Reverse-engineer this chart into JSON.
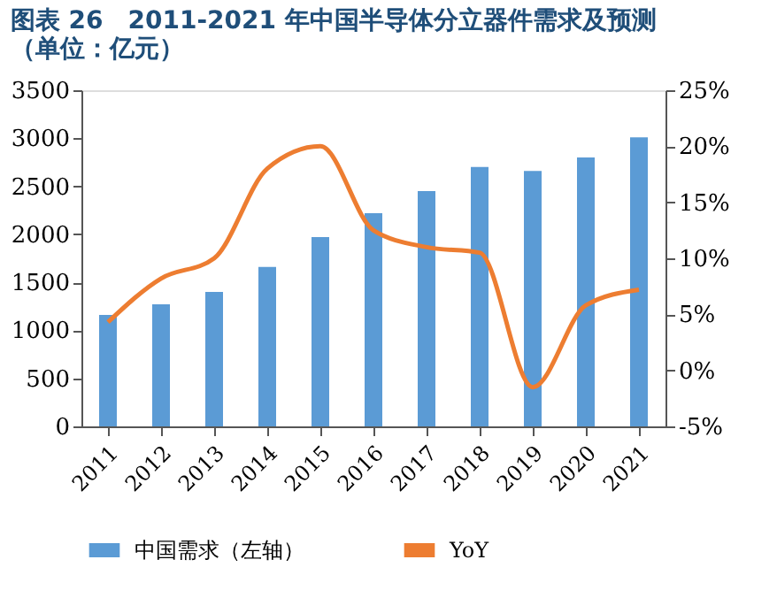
{
  "chart_data": {
    "type": "bar",
    "title": "图表 26　2011-2021 年中国半导体分立器件需求及预测",
    "subtitle": "（单位：亿元）",
    "categories": [
      "2011",
      "2012",
      "2013",
      "2014",
      "2015",
      "2016",
      "2017",
      "2018",
      "2019",
      "2020",
      "2021"
    ],
    "series": [
      {
        "name": "中国需求（左轴）",
        "color": "#5b9bd5",
        "values": [
          1160,
          1270,
          1400,
          1660,
          1970,
          2220,
          2450,
          2700,
          2660,
          2800,
          3010
        ]
      },
      {
        "name": "YoY",
        "color": "#ed7d31",
        "type": "line",
        "axis": "y2",
        "values": [
          4.3,
          8.2,
          10,
          18,
          20,
          12.5,
          11,
          10.5,
          -1.5,
          5.8,
          7.2
        ]
      }
    ],
    "ylim": [
      0,
      3500
    ],
    "yticks": [
      0,
      500,
      1000,
      1500,
      2000,
      2500,
      3000,
      3500
    ],
    "y2lim": [
      -5,
      25
    ],
    "y2ticks": [
      {
        "value": -5,
        "label": "-5%"
      },
      {
        "value": 0,
        "label": "0%"
      },
      {
        "value": 5,
        "label": "5%"
      },
      {
        "value": 10,
        "label": "10%"
      },
      {
        "value": 15,
        "label": "15%"
      },
      {
        "value": 20,
        "label": "20%"
      },
      {
        "value": 25,
        "label": "25%"
      }
    ],
    "grid": false,
    "legend": "bottom",
    "marker": "none",
    "line_style": "solid"
  }
}
